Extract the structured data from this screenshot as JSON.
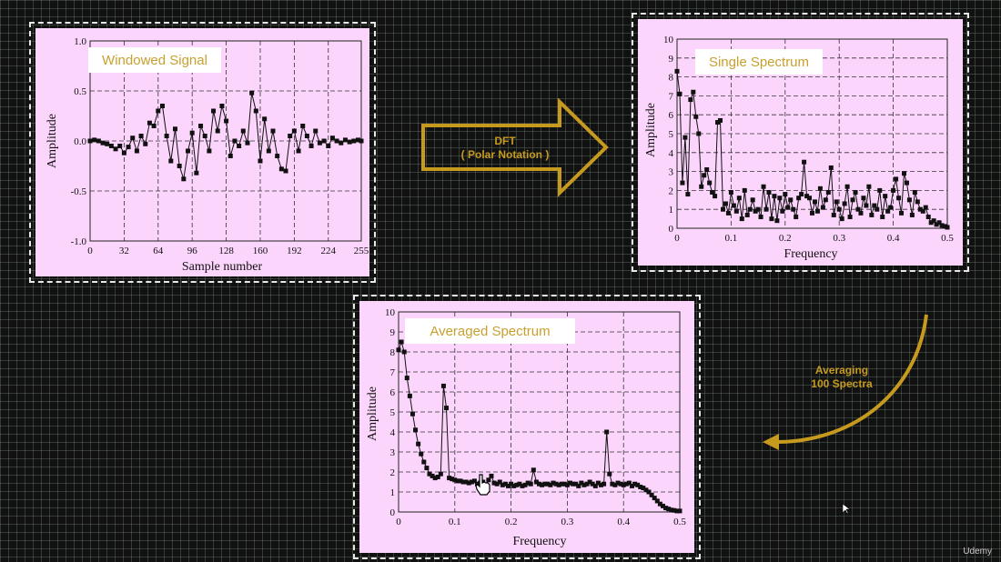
{
  "arrow": {
    "line1": "DFT",
    "line2": "( Polar Notation )"
  },
  "averaging": {
    "line1": "Averaging",
    "line2": "100 Spectra"
  },
  "watermark": "Udemy",
  "accent_color": "#c59a1e",
  "chart_data": [
    {
      "id": "windowed",
      "type": "line",
      "title": "Windowed Signal",
      "xlabel": "Sample number",
      "ylabel": "Amplitude",
      "xlim": [
        0,
        255
      ],
      "ylim": [
        -1.0,
        1.0
      ],
      "xticks": [
        0,
        32,
        64,
        96,
        128,
        160,
        192,
        224,
        255
      ],
      "yticks": [
        -1.0,
        -0.5,
        0.0,
        0.5,
        1.0
      ],
      "ytick_labels": [
        "-1.0",
        "-0.5",
        "0.0",
        "0.5",
        "1.0"
      ],
      "grid": true,
      "x": [
        0,
        4,
        8,
        12,
        16,
        20,
        24,
        28,
        32,
        36,
        40,
        44,
        48,
        52,
        56,
        60,
        64,
        68,
        72,
        76,
        80,
        84,
        88,
        92,
        96,
        100,
        104,
        108,
        112,
        116,
        120,
        124,
        128,
        132,
        136,
        140,
        144,
        148,
        152,
        156,
        160,
        164,
        168,
        172,
        176,
        180,
        184,
        188,
        192,
        196,
        200,
        204,
        208,
        212,
        216,
        220,
        224,
        228,
        232,
        236,
        240,
        244,
        248,
        252,
        255
      ],
      "values": [
        0.0,
        0.01,
        0.0,
        -0.02,
        -0.03,
        -0.05,
        -0.08,
        -0.05,
        -0.12,
        -0.06,
        0.03,
        -0.1,
        0.05,
        -0.03,
        0.18,
        0.15,
        0.3,
        0.35,
        0.05,
        -0.2,
        0.12,
        -0.25,
        -0.38,
        -0.1,
        0.08,
        -0.32,
        0.15,
        0.05,
        -0.1,
        0.3,
        0.1,
        0.35,
        0.2,
        -0.15,
        0.0,
        -0.05,
        0.1,
        -0.02,
        0.48,
        0.3,
        -0.2,
        0.22,
        -0.1,
        0.1,
        -0.15,
        -0.28,
        -0.3,
        0.05,
        0.1,
        -0.1,
        0.15,
        0.05,
        -0.05,
        0.1,
        -0.02,
        0.0,
        -0.05,
        0.03,
        0.0,
        -0.02,
        0.01,
        -0.01,
        0.0,
        0.01,
        0.0
      ]
    },
    {
      "id": "single",
      "type": "line",
      "title": "Single Spectrum",
      "xlabel": "Frequency",
      "ylabel": "Amplitude",
      "xlim": [
        0,
        0.5
      ],
      "ylim": [
        0,
        10
      ],
      "xticks": [
        0,
        0.1,
        0.2,
        0.3,
        0.4,
        0.5
      ],
      "xtick_labels": [
        "0",
        "0.1",
        "0.2",
        "0.3",
        "0.4",
        "0.5"
      ],
      "yticks": [
        0,
        1,
        2,
        3,
        4,
        5,
        6,
        7,
        8,
        9,
        10
      ],
      "grid": true,
      "x": [
        0,
        0.005,
        0.01,
        0.015,
        0.02,
        0.025,
        0.03,
        0.035,
        0.04,
        0.045,
        0.05,
        0.055,
        0.06,
        0.065,
        0.07,
        0.075,
        0.08,
        0.085,
        0.09,
        0.095,
        0.1,
        0.105,
        0.11,
        0.115,
        0.12,
        0.125,
        0.13,
        0.135,
        0.14,
        0.145,
        0.15,
        0.155,
        0.16,
        0.165,
        0.17,
        0.175,
        0.18,
        0.185,
        0.19,
        0.195,
        0.2,
        0.205,
        0.21,
        0.215,
        0.22,
        0.225,
        0.23,
        0.235,
        0.24,
        0.245,
        0.25,
        0.255,
        0.26,
        0.265,
        0.27,
        0.275,
        0.28,
        0.285,
        0.29,
        0.295,
        0.3,
        0.305,
        0.31,
        0.315,
        0.32,
        0.325,
        0.33,
        0.335,
        0.34,
        0.345,
        0.35,
        0.355,
        0.36,
        0.365,
        0.37,
        0.375,
        0.38,
        0.385,
        0.39,
        0.395,
        0.4,
        0.405,
        0.41,
        0.415,
        0.42,
        0.425,
        0.43,
        0.435,
        0.44,
        0.445,
        0.45,
        0.455,
        0.46,
        0.465,
        0.47,
        0.475,
        0.48,
        0.485,
        0.49,
        0.495,
        0.5
      ],
      "values": [
        8.3,
        7.1,
        2.4,
        4.8,
        1.8,
        6.8,
        7.2,
        5.9,
        5.0,
        2.2,
        2.8,
        3.1,
        2.4,
        1.9,
        1.7,
        5.6,
        5.7,
        1.0,
        1.3,
        0.8,
        1.9,
        1.2,
        0.9,
        1.6,
        0.5,
        2.0,
        0.7,
        1.0,
        1.5,
        0.9,
        1.0,
        0.6,
        2.2,
        1.0,
        1.9,
        0.5,
        1.7,
        0.4,
        1.6,
        0.9,
        1.8,
        1.1,
        1.5,
        1.0,
        0.6,
        1.6,
        1.8,
        3.5,
        1.7,
        1.6,
        0.8,
        1.4,
        0.9,
        2.1,
        1.1,
        1.5,
        1.9,
        3.2,
        0.7,
        1.4,
        1.0,
        0.5,
        1.3,
        2.2,
        0.6,
        1.5,
        1.9,
        1.0,
        0.8,
        1.6,
        1.2,
        2.2,
        0.7,
        1.2,
        1.0,
        2.0,
        0.6,
        1.7,
        0.9,
        1.1,
        2.0,
        2.6,
        1.6,
        0.8,
        2.9,
        2.4,
        1.5,
        0.7,
        1.9,
        1.4,
        1.0,
        0.9,
        1.1,
        0.6,
        0.3,
        0.4,
        0.2,
        0.3,
        0.15,
        0.1,
        0.05
      ]
    },
    {
      "id": "averaged",
      "type": "line",
      "title": "Averaged Spectrum",
      "xlabel": "Frequency",
      "ylabel": "Amplitude",
      "xlim": [
        0,
        0.5
      ],
      "ylim": [
        0,
        10
      ],
      "xticks": [
        0,
        0.1,
        0.2,
        0.3,
        0.4,
        0.5
      ],
      "xtick_labels": [
        "0",
        "0.1",
        "0.2",
        "0.3",
        "0.4",
        "0.5"
      ],
      "yticks": [
        0,
        1,
        2,
        3,
        4,
        5,
        6,
        7,
        8,
        9,
        10
      ],
      "grid": true,
      "x": [
        0,
        0.005,
        0.01,
        0.015,
        0.02,
        0.025,
        0.03,
        0.035,
        0.04,
        0.045,
        0.05,
        0.055,
        0.06,
        0.065,
        0.07,
        0.075,
        0.08,
        0.085,
        0.09,
        0.095,
        0.1,
        0.105,
        0.11,
        0.115,
        0.12,
        0.125,
        0.13,
        0.135,
        0.14,
        0.145,
        0.15,
        0.155,
        0.16,
        0.165,
        0.17,
        0.175,
        0.18,
        0.185,
        0.19,
        0.195,
        0.2,
        0.205,
        0.21,
        0.215,
        0.22,
        0.225,
        0.23,
        0.235,
        0.24,
        0.245,
        0.25,
        0.255,
        0.26,
        0.265,
        0.27,
        0.275,
        0.28,
        0.285,
        0.29,
        0.295,
        0.3,
        0.305,
        0.31,
        0.315,
        0.32,
        0.325,
        0.33,
        0.335,
        0.34,
        0.345,
        0.35,
        0.355,
        0.36,
        0.365,
        0.37,
        0.375,
        0.38,
        0.385,
        0.39,
        0.395,
        0.4,
        0.405,
        0.41,
        0.415,
        0.42,
        0.425,
        0.43,
        0.435,
        0.44,
        0.445,
        0.45,
        0.455,
        0.46,
        0.465,
        0.47,
        0.475,
        0.48,
        0.485,
        0.49,
        0.495,
        0.5
      ],
      "values": [
        8.1,
        8.5,
        8.0,
        6.7,
        5.8,
        4.9,
        4.1,
        3.4,
        2.9,
        2.5,
        2.2,
        1.9,
        1.8,
        1.7,
        1.75,
        1.9,
        6.3,
        5.2,
        1.7,
        1.65,
        1.6,
        1.55,
        1.55,
        1.5,
        1.5,
        1.45,
        1.5,
        1.55,
        1.4,
        1.45,
        1.5,
        1.3,
        1.6,
        1.8,
        1.45,
        1.4,
        1.5,
        1.35,
        1.4,
        1.3,
        1.4,
        1.3,
        1.35,
        1.4,
        1.3,
        1.35,
        1.45,
        1.4,
        2.1,
        1.5,
        1.4,
        1.35,
        1.4,
        1.4,
        1.35,
        1.45,
        1.4,
        1.35,
        1.4,
        1.4,
        1.35,
        1.45,
        1.4,
        1.4,
        1.3,
        1.45,
        1.35,
        1.4,
        1.5,
        1.4,
        1.3,
        1.45,
        1.35,
        1.4,
        4.0,
        1.9,
        1.4,
        1.35,
        1.45,
        1.4,
        1.35,
        1.4,
        1.45,
        1.3,
        1.4,
        1.35,
        1.25,
        1.2,
        1.1,
        1.0,
        0.85,
        0.7,
        0.55,
        0.4,
        0.3,
        0.2,
        0.15,
        0.1,
        0.08,
        0.05,
        0.05
      ]
    }
  ]
}
